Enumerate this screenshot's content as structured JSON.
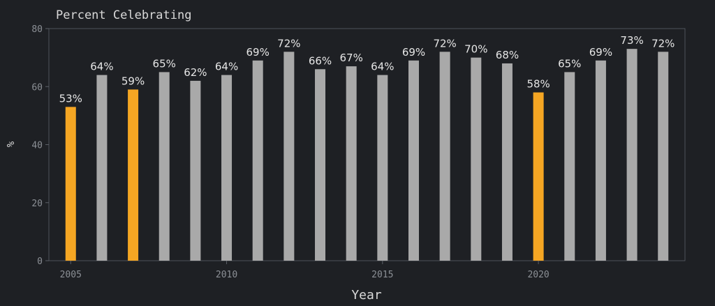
{
  "chart_data": {
    "type": "bar",
    "title": "Percent Celebrating",
    "xlabel": "Year",
    "ylabel": "%",
    "ylim": [
      0,
      80
    ],
    "xlim": [
      2004.3,
      2024.7
    ],
    "y_ticks": [
      "0",
      "20",
      "40",
      "60",
      "80"
    ],
    "x_ticks": [
      "2005",
      "2010",
      "2015",
      "2020"
    ],
    "x": [
      2005,
      2006,
      2007,
      2008,
      2009,
      2010,
      2011,
      2012,
      2013,
      2014,
      2015,
      2016,
      2017,
      2018,
      2019,
      2020,
      2021,
      2022,
      2023,
      2024
    ],
    "values": [
      53,
      64,
      59,
      65,
      62,
      64,
      69,
      72,
      66,
      67,
      64,
      69,
      72,
      70,
      68,
      58,
      65,
      69,
      73,
      72
    ],
    "data_labels": [
      "53%",
      "64%",
      "59%",
      "65%",
      "62%",
      "64%",
      "69%",
      "72%",
      "66%",
      "67%",
      "64%",
      "69%",
      "72%",
      "70%",
      "68%",
      "58%",
      "65%",
      "69%",
      "73%",
      "72%"
    ],
    "highlighted_years": [
      2005,
      2007,
      2020
    ],
    "grid": false,
    "colors": {
      "background": "#1e2024",
      "bar": "#a9a9a9",
      "highlight": "#f5a623",
      "axis": "#5c6068",
      "tick_text": "#8c9096",
      "label_text": "#e6e6e6",
      "title_text": "#d9d9d9"
    }
  }
}
